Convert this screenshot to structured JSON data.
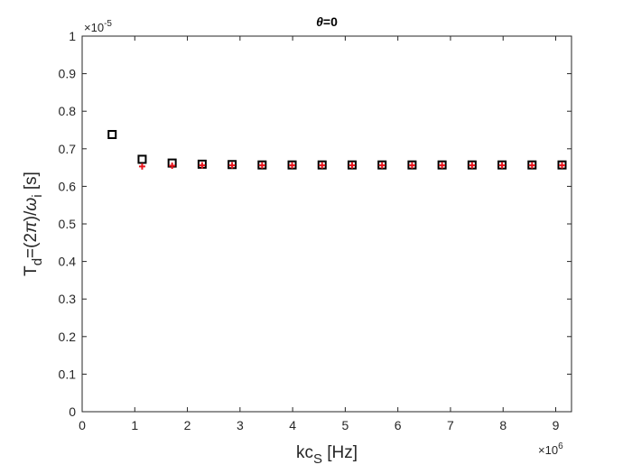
{
  "chart_data": {
    "type": "scatter",
    "title": "θ=0",
    "xlabel": "kc_S [Hz]",
    "ylabel": "T_d=(2π)/ω_i [s]",
    "x_exponent": "×10^6",
    "y_exponent": "×10^-5",
    "xlim": [
      0,
      9.3
    ],
    "ylim": [
      0,
      1
    ],
    "x_ticks": [
      "0",
      "1",
      "2",
      "3",
      "4",
      "5",
      "6",
      "7",
      "8",
      "9"
    ],
    "y_ticks": [
      "0",
      "0.1",
      "0.2",
      "0.3",
      "0.4",
      "0.5",
      "0.6",
      "0.7",
      "0.8",
      "0.9",
      "1"
    ],
    "grid": false,
    "series": [
      {
        "marker": "square",
        "color": "#000000",
        "x": [
          0.57,
          1.14,
          1.71,
          2.28,
          2.85,
          3.42,
          3.99,
          4.56,
          5.13,
          5.7,
          6.27,
          6.84,
          7.41,
          7.98,
          8.55,
          9.12
        ],
        "y": [
          0.738,
          0.672,
          0.662,
          0.659,
          0.658,
          0.657,
          0.657,
          0.657,
          0.657,
          0.657,
          0.657,
          0.657,
          0.657,
          0.657,
          0.657,
          0.657
        ]
      },
      {
        "marker": "plus",
        "color": "#e8141c",
        "x": [
          1.14,
          1.71,
          2.28,
          2.85,
          3.42,
          3.99,
          4.56,
          5.13,
          5.7,
          6.27,
          6.84,
          7.41,
          7.98,
          8.55,
          9.12
        ],
        "y": [
          0.653,
          0.655,
          0.656,
          0.656,
          0.656,
          0.656,
          0.656,
          0.656,
          0.656,
          0.656,
          0.656,
          0.656,
          0.656,
          0.656,
          0.656
        ]
      }
    ]
  }
}
